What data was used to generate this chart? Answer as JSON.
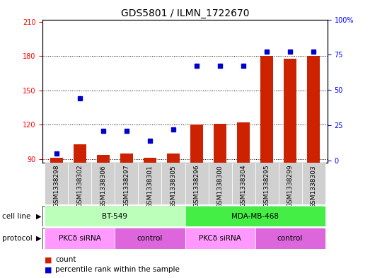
{
  "title": "GDS5801 / ILMN_1722670",
  "samples": [
    "GSM1338298",
    "GSM1338302",
    "GSM1338306",
    "GSM1338297",
    "GSM1338301",
    "GSM1338305",
    "GSM1338296",
    "GSM1338300",
    "GSM1338304",
    "GSM1338295",
    "GSM1338299",
    "GSM1338303"
  ],
  "counts": [
    91,
    103,
    94,
    95,
    91,
    95,
    120,
    121,
    122,
    180,
    178,
    180
  ],
  "percentiles": [
    5,
    44,
    21,
    21,
    14,
    22,
    67,
    67,
    67,
    77,
    77,
    77
  ],
  "ylim_left": [
    87,
    212
  ],
  "ylim_right": [
    -1.3,
    100
  ],
  "yticks_left": [
    90,
    120,
    150,
    180,
    210
  ],
  "yticks_right": [
    0,
    25,
    50,
    75,
    100
  ],
  "cell_line_groups": [
    {
      "label": "BT-549",
      "start": 0,
      "end": 6,
      "color": "#bbffbb"
    },
    {
      "label": "MDA-MB-468",
      "start": 6,
      "end": 12,
      "color": "#44ee44"
    }
  ],
  "protocol_groups": [
    {
      "label": "PKCδ siRNA",
      "start": 0,
      "end": 3,
      "color": "#ff99ff"
    },
    {
      "label": "control",
      "start": 3,
      "end": 6,
      "color": "#dd66dd"
    },
    {
      "label": "PKCδ siRNA",
      "start": 6,
      "end": 9,
      "color": "#ff99ff"
    },
    {
      "label": "control",
      "start": 9,
      "end": 12,
      "color": "#dd66dd"
    }
  ],
  "bar_color": "#cc2200",
  "dot_color": "#0000cc",
  "bar_width": 0.55,
  "grid_color": "#000000",
  "bg_color": "#ffffff",
  "plot_bg_color": "#ffffff",
  "legend_count_color": "#cc2200",
  "legend_pct_color": "#0000cc",
  "title_fontsize": 10,
  "tick_fontsize": 7,
  "label_fontsize": 7.5,
  "xticklabel_fontsize": 6.5
}
